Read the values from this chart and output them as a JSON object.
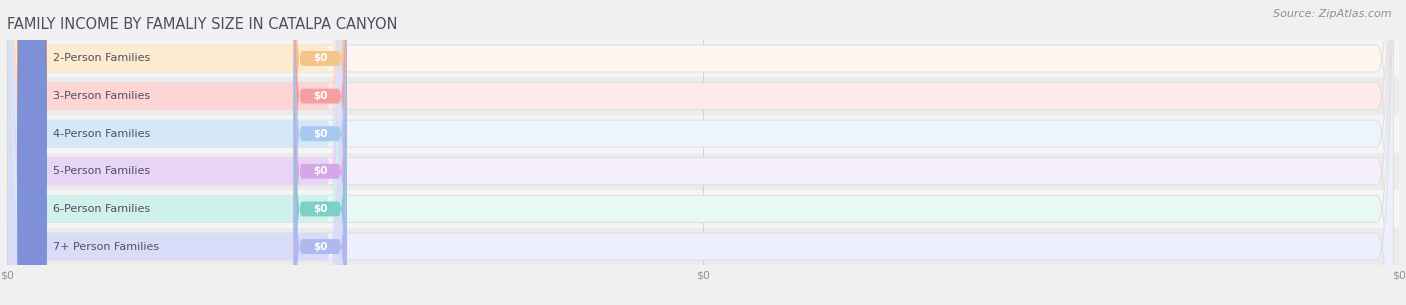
{
  "title": "FAMILY INCOME BY FAMALIY SIZE IN CATALPA CANYON",
  "source": "Source: ZipAtlas.com",
  "categories": [
    "2-Person Families",
    "3-Person Families",
    "4-Person Families",
    "5-Person Families",
    "6-Person Families",
    "7+ Person Families"
  ],
  "values": [
    0,
    0,
    0,
    0,
    0,
    0
  ],
  "bar_colors": [
    "#f5c48a",
    "#f5a0a0",
    "#a8c8f0",
    "#d4a8e8",
    "#7ecfc8",
    "#b0b8f0"
  ],
  "bar_bg_colors": [
    "#fef6ee",
    "#feeaea",
    "#edf4fd",
    "#f5eefb",
    "#e8f8f5",
    "#eeeffe"
  ],
  "dot_colors": [
    "#f0a855",
    "#e87070",
    "#68a8e8",
    "#b068d8",
    "#48b8b0",
    "#8090d8"
  ],
  "label_bg_colors": [
    "#fdebd0",
    "#fdd5d5",
    "#d5e8f8",
    "#e8d5f5",
    "#d0f0ec",
    "#d8dcf8"
  ],
  "row_bg_even": "#f5f5f5",
  "row_bg_odd": "#ebebeb",
  "title_color": "#4a5060",
  "source_color": "#909090",
  "title_fontsize": 10.5,
  "label_fontsize": 8.0,
  "value_fontsize": 7.5,
  "source_fontsize": 8.0,
  "background_color": "#f0f0f0"
}
